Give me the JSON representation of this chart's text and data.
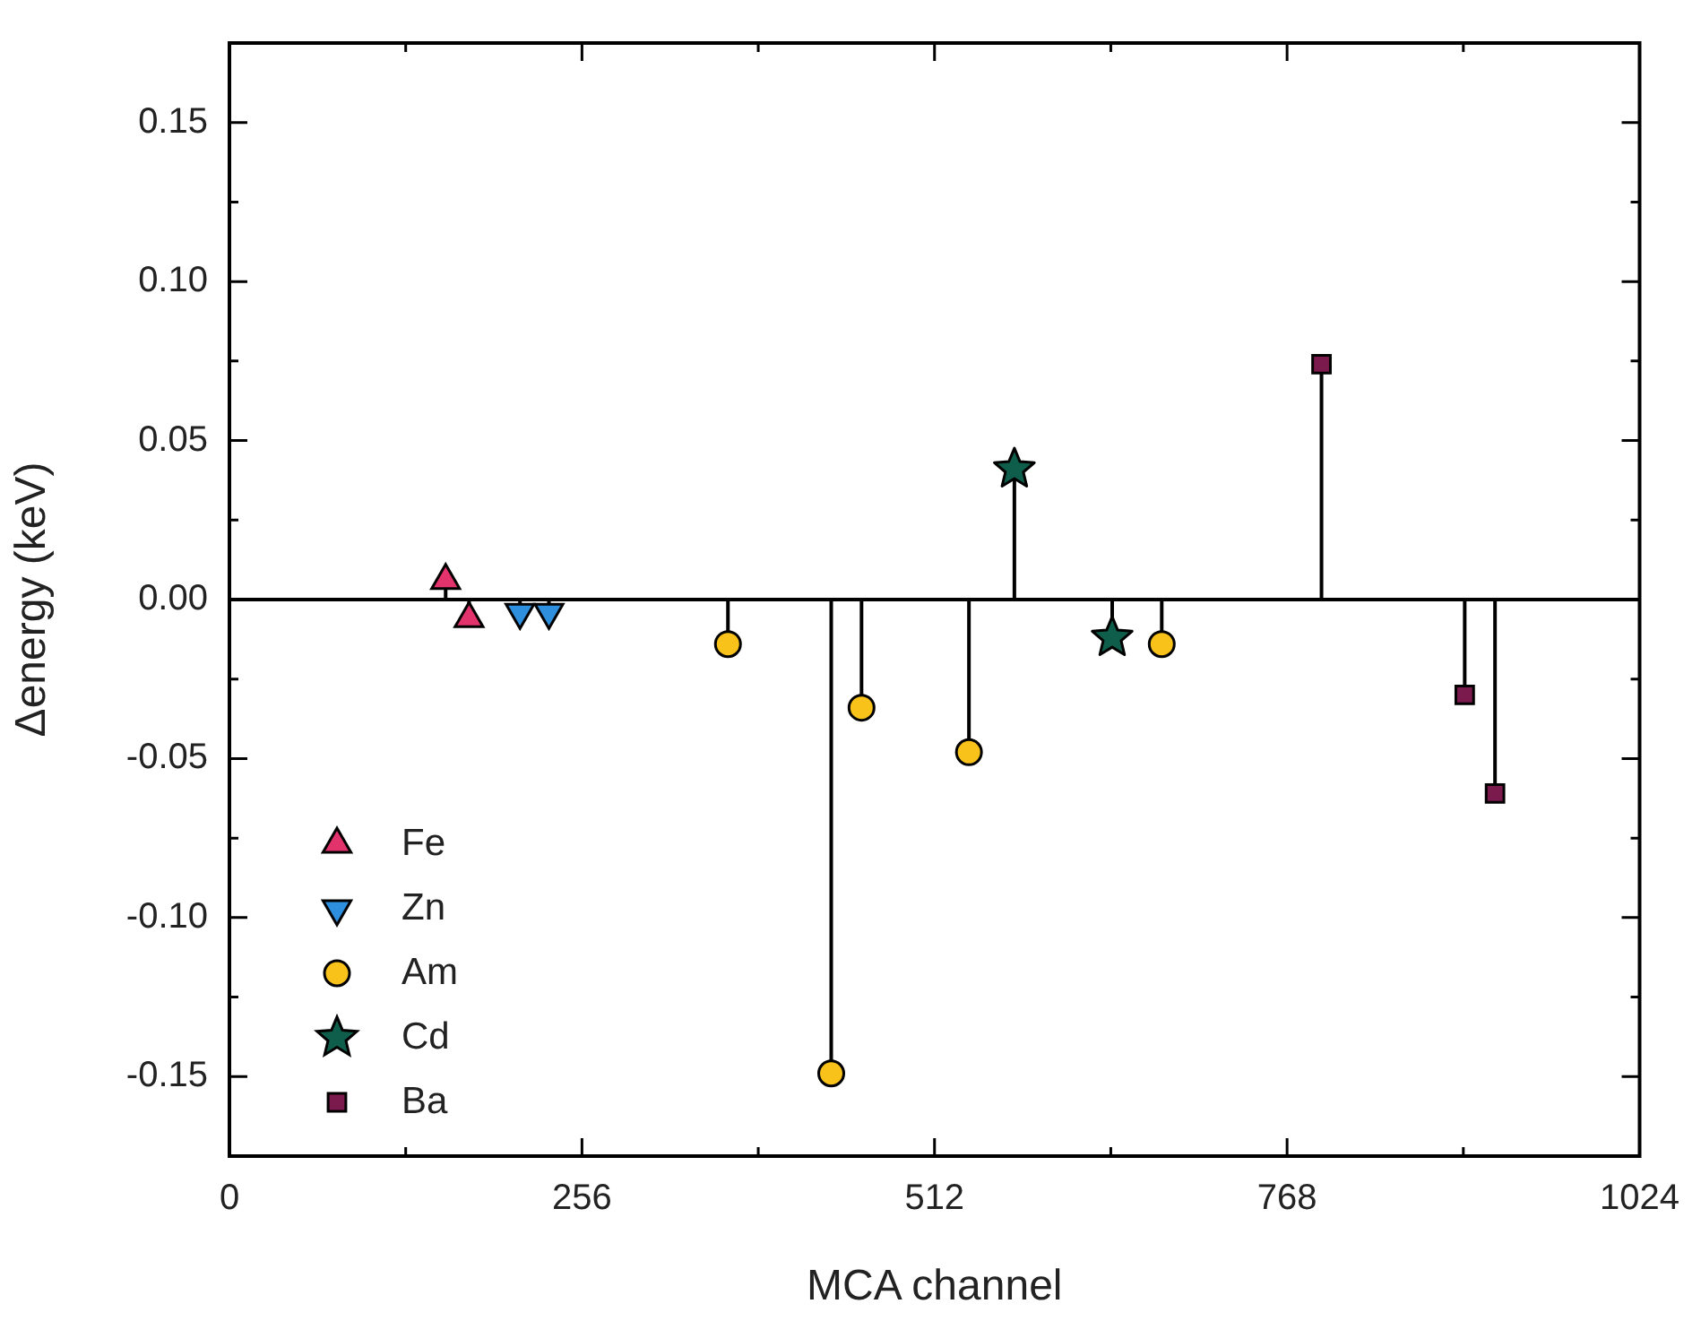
{
  "chart_data": {
    "type": "lollipop",
    "xlabel": "MCA channel",
    "ylabel": "Δenergy (keV)",
    "xlim": [
      0,
      1024
    ],
    "xticks": [
      0,
      256,
      512,
      768,
      1024
    ],
    "ylim": [
      -0.175,
      0.175
    ],
    "yticks": [
      -0.15,
      {
        "value": -0.1,
        "label": "-0.10"
      },
      -0.05,
      {
        "value": 0,
        "label": "0.00"
      },
      0.05,
      {
        "value": 0.1,
        "label": "0.10"
      },
      0.15
    ],
    "grid": false,
    "legend": "bottom left",
    "ref_lines": [
      {
        "axis": "y",
        "value": 0,
        "color": "#000000"
      }
    ],
    "series": [
      {
        "name": "Fe",
        "color": "#e2336c",
        "marker": "triangle",
        "x": [
          157,
          174
        ],
        "values": [
          0.006,
          -0.006
        ]
      },
      {
        "name": "Zn",
        "color": "#2e8fde",
        "marker": "triangle_down",
        "x": [
          211,
          232
        ],
        "values": [
          -0.004,
          -0.004
        ]
      },
      {
        "name": "Am",
        "color": "#f9c21b",
        "marker": "circle",
        "x": [
          362,
          437,
          459,
          537,
          677
        ],
        "values": [
          -0.014,
          -0.149,
          -0.034,
          -0.048,
          -0.014
        ]
      },
      {
        "name": "Cd",
        "color": "#0f5e4b",
        "marker": "star",
        "x": [
          570,
          641
        ],
        "values": [
          0.041,
          -0.012
        ]
      },
      {
        "name": "Ba",
        "color": "#7b1a4c",
        "marker": "square",
        "x": [
          793,
          897,
          919
        ],
        "values": [
          0.074,
          -0.03,
          -0.061
        ]
      }
    ]
  }
}
